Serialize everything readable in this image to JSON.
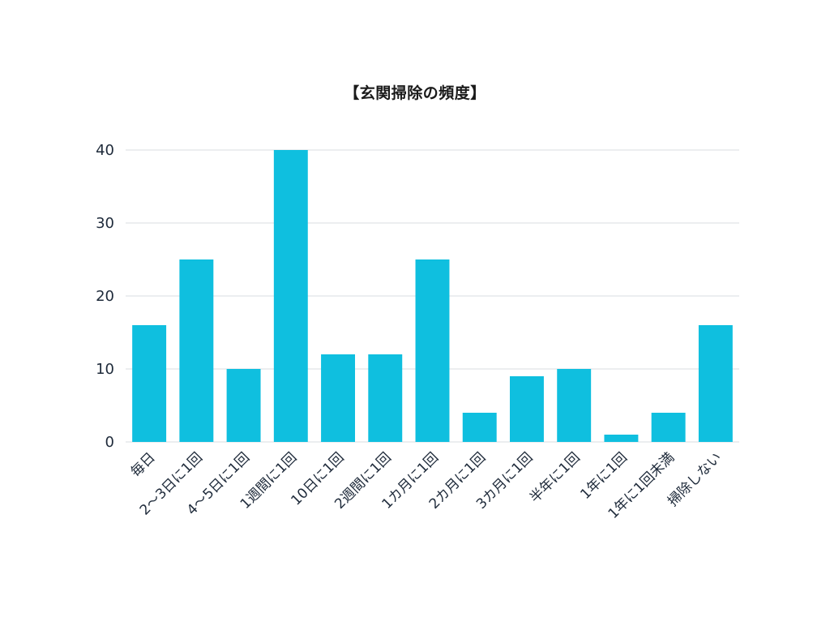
{
  "chart_data": {
    "type": "bar",
    "title": "【玄関掃除の頻度】",
    "categories": [
      "毎日",
      "2～3日に1回",
      "4～5日に1回",
      "1週間に1回",
      "10日に1回",
      "2週間に1回",
      "1カ月に1回",
      "2カ月に1回",
      "3カ月に1回",
      "半年に1回",
      "1年に1回",
      "1年に1回未満",
      "掃除しない"
    ],
    "values": [
      16,
      25,
      10,
      40,
      12,
      12,
      25,
      4,
      9,
      10,
      1,
      4,
      16
    ],
    "ylim": [
      0,
      40
    ],
    "yticks": [
      0,
      10,
      20,
      30,
      40
    ],
    "grid": true,
    "legend": "none",
    "xlabel": "",
    "ylabel": "",
    "colors": {
      "bar": "#0fbfdf",
      "grid": "#d9dde1",
      "text": "#1e2a3a"
    }
  }
}
